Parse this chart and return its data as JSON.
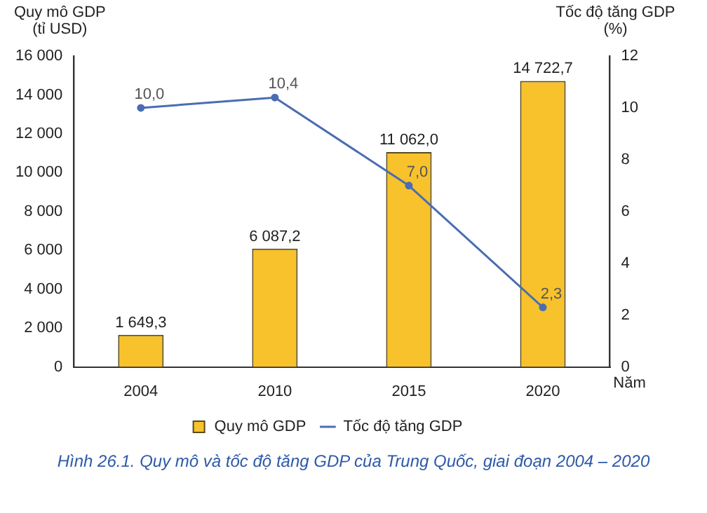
{
  "chart_data": {
    "type": "bar",
    "categories": [
      "2004",
      "2010",
      "2015",
      "2020"
    ],
    "ylabel": "Quy mô GDP\n(tỉ USD)",
    "y2label": "Tốc độ tăng GDP\n(%)",
    "xlabel": "Năm",
    "series": [
      {
        "name": "Quy mô GDP",
        "color": "#f7c22b",
        "values": [
          1649.3,
          6087.2,
          11062.0,
          14722.7
        ],
        "value_labels": [
          "1 649,3",
          "6 087,2",
          "11 062,0",
          "14 722,7"
        ]
      },
      {
        "name": "Tốc độ tăng GDP",
        "type": "line",
        "axis": "y2",
        "color": "#4a6db3",
        "values": [
          10.0,
          10.4,
          7.0,
          2.3
        ],
        "value_labels": [
          "10,0",
          "10,4",
          "7,0",
          "2,3"
        ]
      }
    ],
    "ylim": [
      0,
      16000
    ],
    "yticks": [
      0,
      {
        "value": 2000,
        "label": "2 000"
      },
      {
        "value": 4000,
        "label": "4 000"
      },
      {
        "value": 6000,
        "label": "6 000"
      },
      {
        "value": 8000,
        "label": "8 000"
      },
      {
        "value": 10000,
        "label": "10 000"
      },
      {
        "value": 12000,
        "label": "12 000"
      },
      {
        "value": 14000,
        "label": "14 000"
      },
      {
        "value": 16000,
        "label": "16 000"
      }
    ],
    "y2lim": [
      0,
      12
    ],
    "y2ticks": [
      0,
      2,
      4,
      6,
      8,
      10,
      12
    ],
    "grid": false,
    "legend": "bottom",
    "marker": "circle",
    "line_style": "solid",
    "annotations": [
      "Hình 26.1. Quy mô và tốc độ tăng GDP của Trung Quốc, giai đoạn 2004 – 2020"
    ]
  }
}
